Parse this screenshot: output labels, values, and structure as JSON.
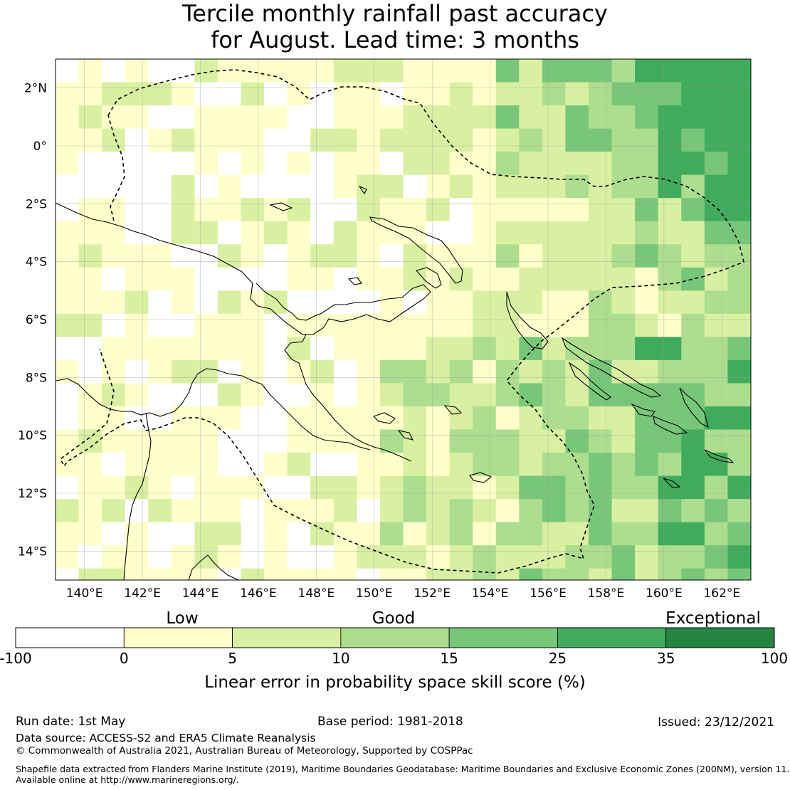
{
  "title_line1": "Tercile monthly rainfall past accuracy",
  "title_line2": "for August. Lead time: 3 months",
  "lat_ticks": [
    "2°N",
    "0°",
    "2°S",
    "4°S",
    "6°S",
    "8°S",
    "10°S",
    "12°S",
    "14°S"
  ],
  "lon_ticks": [
    "140°E",
    "142°E",
    "144°E",
    "146°E",
    "148°E",
    "150°E",
    "152°E",
    "154°E",
    "156°E",
    "158°E",
    "160°E",
    "162°E"
  ],
  "colorbar": {
    "category_labels": [
      "Low",
      "Good",
      "Exceptional"
    ],
    "tick_labels": [
      "-100",
      "0",
      "5",
      "10",
      "15",
      "25",
      "35",
      "100"
    ],
    "colors": [
      "#ffffff",
      "#ffffcc",
      "#d9f0a3",
      "#addd8e",
      "#78c679",
      "#41ab5d",
      "#238443"
    ],
    "axis_label": "Linear error in probability space skill score (%)"
  },
  "footer": {
    "run_date": "Run date: 1st May",
    "base_period": "Base period: 1981-2018",
    "issued": "Issued: 23/12/2021",
    "data_source": "Data source: ACCESS-S2 and ERA5 Climate Reanalysis",
    "copyright": "© Commonwealth of Australia 2021, Australian Bureau of Meteorology, Supported by COSPPac",
    "shapefile_line1": "Shapefile data extracted from Flanders Marine Institute (2019), Maritime Boundaries Geodatabase: Maritime Boundaries and Exclusive Economic Zones (200NM), version 11.",
    "shapefile_line2": "Available online at http://www.marineregions.org/."
  }
}
